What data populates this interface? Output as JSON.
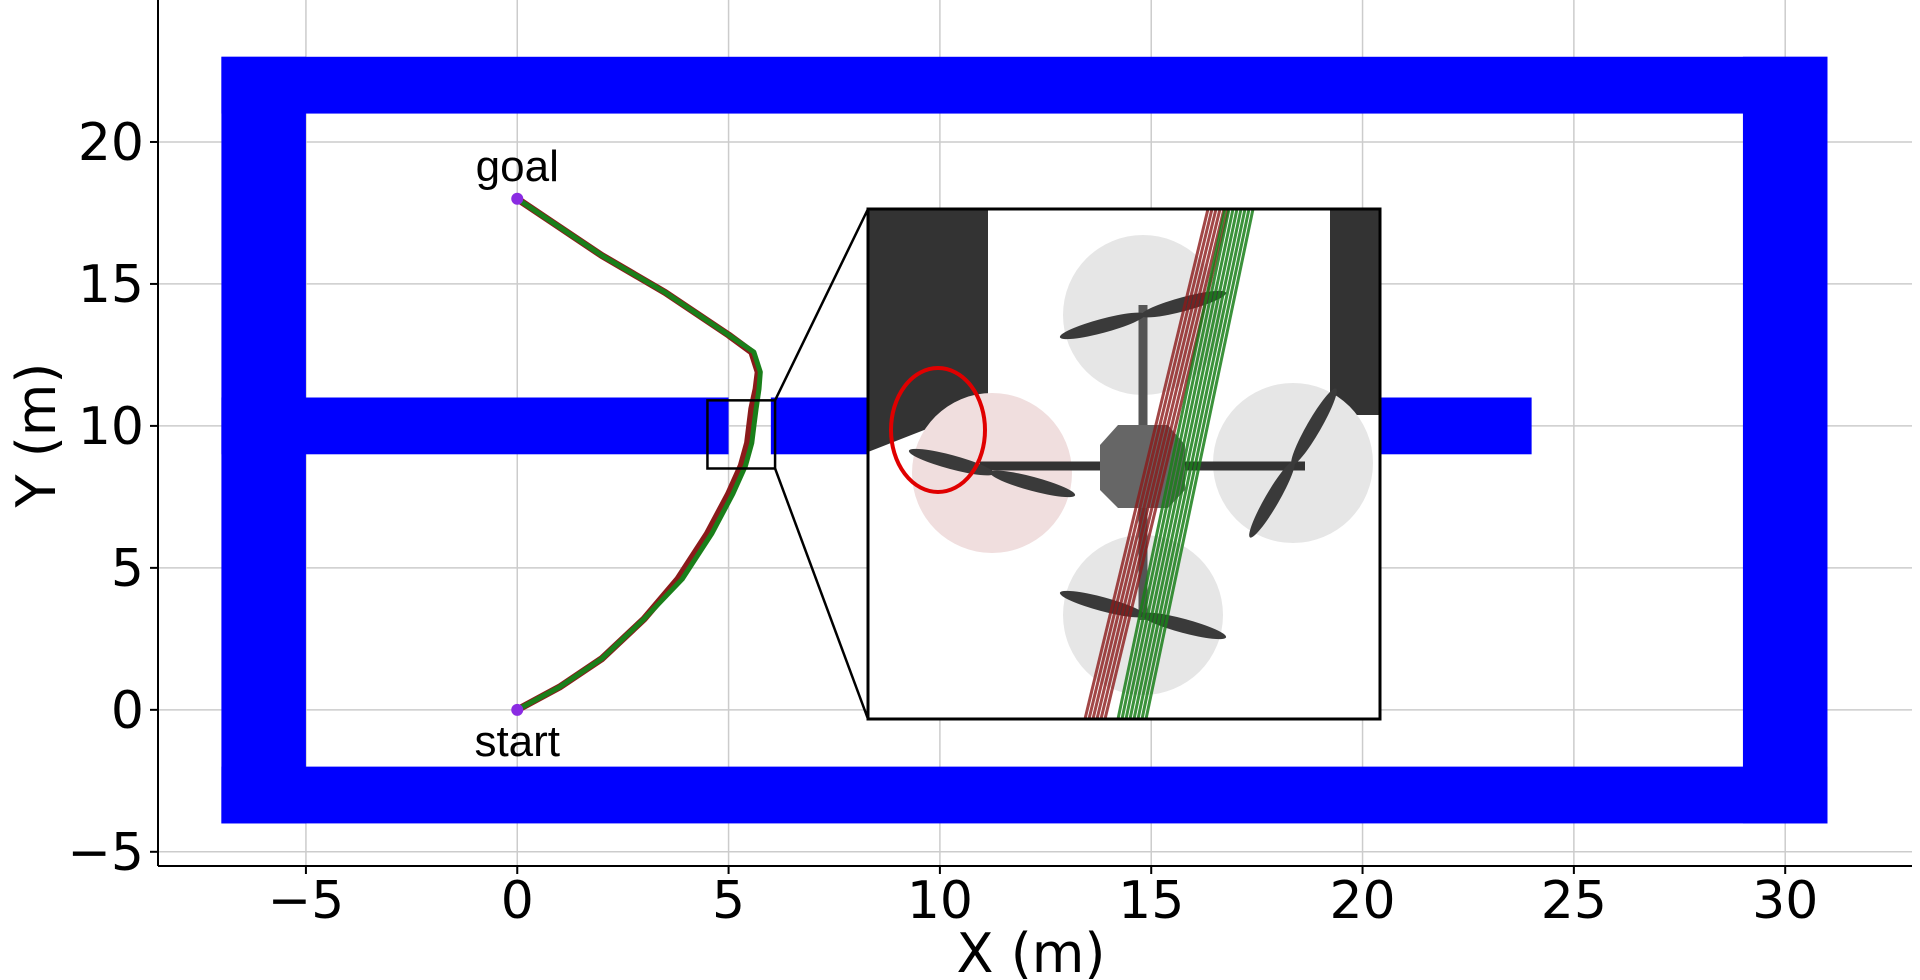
{
  "chart_data": {
    "type": "line",
    "xlabel": "X (m)",
    "ylabel": "Y (m)",
    "xlim": [
      -8.5,
      33
    ],
    "ylim": [
      -5.5,
      25
    ],
    "xticks": [
      -5,
      0,
      5,
      10,
      15,
      20,
      25,
      30
    ],
    "yticks": [
      -5,
      0,
      5,
      10,
      15,
      20
    ],
    "xtick_labels": [
      "−5",
      "0",
      "5",
      "10",
      "15",
      "20",
      "25",
      "30"
    ],
    "ytick_labels": [
      "−5",
      "0",
      "5",
      "10",
      "15",
      "20"
    ],
    "grid": true,
    "obstacles": [
      {
        "name": "top-wall",
        "x": [
          -7,
          31
        ],
        "y": [
          21,
          23
        ]
      },
      {
        "name": "bottom-wall",
        "x": [
          -7,
          31
        ],
        "y": [
          -4,
          -2
        ]
      },
      {
        "name": "left-wall",
        "x": [
          -7,
          -5
        ],
        "y": [
          -4,
          23
        ]
      },
      {
        "name": "right-wall",
        "x": [
          29,
          31
        ],
        "y": [
          -4,
          23
        ]
      },
      {
        "name": "middle-wall-left",
        "x": [
          -7,
          5
        ],
        "y": [
          9,
          11
        ]
      },
      {
        "name": "middle-wall-right",
        "x": [
          6,
          24
        ],
        "y": [
          9,
          11
        ]
      }
    ],
    "obstacle_color": "#0000ff",
    "series": [
      {
        "color": "#8b1a1a",
        "x": [
          0,
          1,
          2,
          3,
          3.8,
          4.5,
          5.0,
          5.3,
          5.45,
          5.5,
          5.55,
          5.65,
          5.7,
          5.55,
          5.0,
          3.5,
          2.0,
          0.8,
          0
        ],
        "y": [
          0,
          0.8,
          1.8,
          3.2,
          4.6,
          6.2,
          7.6,
          8.6,
          9.4,
          10.0,
          10.6,
          11.3,
          11.9,
          12.6,
          13.2,
          14.7,
          16.0,
          17.2,
          18
        ]
      },
      {
        "color": "#1a7f1a",
        "x": [
          0,
          1,
          2,
          3,
          3.9,
          4.6,
          5.1,
          5.4,
          5.55,
          5.6,
          5.65,
          5.72,
          5.75,
          5.6,
          5.0,
          3.5,
          2.0,
          0.8,
          0
        ],
        "y": [
          0,
          0.8,
          1.8,
          3.2,
          4.6,
          6.2,
          7.6,
          8.6,
          9.4,
          10.0,
          10.6,
          11.3,
          11.9,
          12.6,
          13.2,
          14.7,
          16.0,
          17.2,
          18
        ]
      }
    ],
    "points": [
      {
        "label": "start",
        "x": 0,
        "y": 0,
        "color": "#8a2be2"
      },
      {
        "label": "goal",
        "x": 0,
        "y": 18,
        "color": "#8a2be2"
      }
    ],
    "zoom_region": {
      "x": [
        4.5,
        6.1
      ],
      "y": [
        8.5,
        10.9
      ]
    },
    "inset_colors": {
      "obstacle": "#333333",
      "rotor_disc": "#e6e6e6",
      "rotor_disc_highlight": "#f0dede",
      "body": "#666666",
      "highlight_ring": "#e00000"
    }
  }
}
